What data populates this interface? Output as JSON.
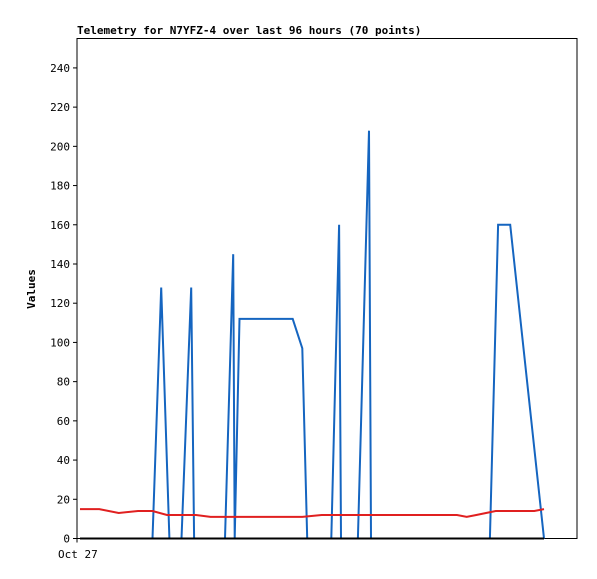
{
  "chart_data": {
    "type": "line",
    "title": "Telemetry for N7YFZ-4 over last 96 hours (70 points)",
    "xlabel": "",
    "ylabel": "Values",
    "x_tick_labels": [
      "Oct 27"
    ],
    "y_ticks": [
      0,
      20,
      40,
      60,
      80,
      100,
      120,
      140,
      160,
      180,
      200,
      220,
      240
    ],
    "ylim": [
      0,
      255
    ],
    "xlim": [
      0,
      96
    ],
    "grid": false,
    "legend": "none",
    "series": [
      {
        "color": "#1565c0",
        "x": [
          0,
          15,
          16.8,
          18.5,
          21,
          23,
          23.6,
          25,
          30,
          31.7,
          32,
          33,
          36,
          44,
          46,
          47,
          52,
          53.6,
          54,
          54.5,
          55,
          57.5,
          59.8,
          60.2,
          61.2,
          62.5,
          69,
          84.8,
          86.5,
          87,
          89,
          96
        ],
        "y": [
          0,
          0,
          128,
          0,
          0,
          128,
          0,
          0,
          0,
          145,
          0,
          112,
          112,
          112,
          97,
          0,
          0,
          160,
          0,
          0,
          0,
          0,
          208,
          0,
          0,
          0,
          0,
          0,
          160,
          160,
          160,
          0
        ]
      },
      {
        "color": "#e02020",
        "x": [
          0,
          4,
          8,
          12,
          15,
          18,
          20,
          24,
          27,
          30,
          34,
          40,
          46,
          50,
          56,
          62,
          68,
          74,
          78,
          80,
          82,
          84,
          86,
          88,
          90,
          94,
          96
        ],
        "y": [
          15,
          15,
          13,
          14,
          14,
          12,
          12,
          12,
          11,
          11,
          11,
          11,
          11,
          12,
          12,
          12,
          12,
          12,
          12,
          11,
          12,
          13,
          14,
          14,
          14,
          14,
          15
        ]
      },
      {
        "color": "#000000",
        "x": [
          0,
          96
        ],
        "y": [
          0,
          0
        ]
      }
    ]
  }
}
